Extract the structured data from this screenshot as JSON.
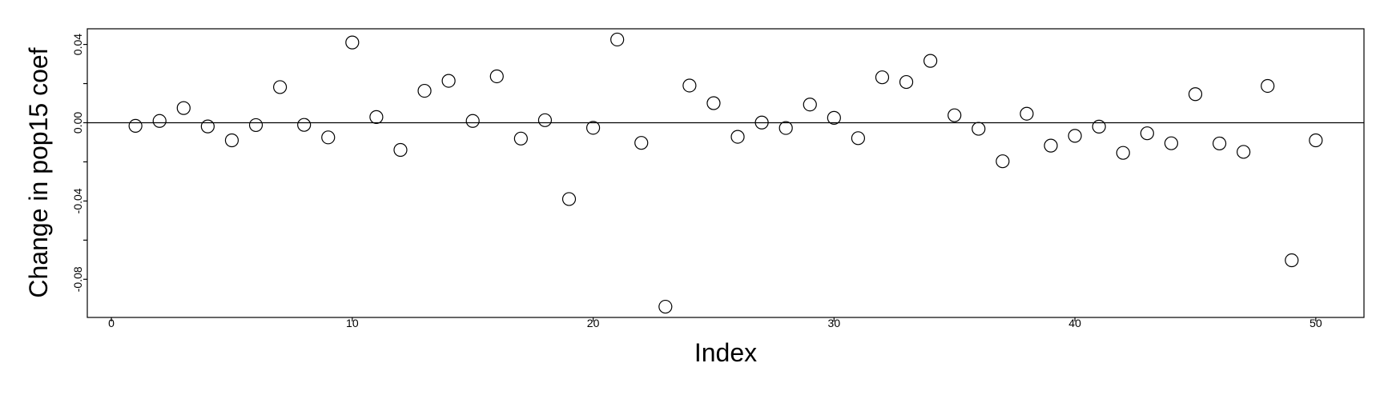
{
  "chart_data": {
    "type": "scatter",
    "title": "",
    "xlabel": "Index",
    "ylabel": "Change in pop15 coef",
    "xlim": [
      -1,
      52
    ],
    "ylim": [
      -0.0995,
      0.048
    ],
    "xticks": [
      0,
      10,
      20,
      30,
      40,
      50
    ],
    "xtick_labels": [
      "0",
      "10",
      "20",
      "30",
      "40",
      "50"
    ],
    "yticks": [
      -0.08,
      -0.04,
      0.0,
      0.04
    ],
    "ytick_labels": [
      "-0.08",
      "-0.04",
      "0.00",
      "0.04"
    ],
    "hline": 0.0,
    "grid": false,
    "marker": "open-circle",
    "x": [
      1,
      2,
      3,
      4,
      5,
      6,
      7,
      8,
      9,
      10,
      11,
      12,
      13,
      14,
      15,
      16,
      17,
      18,
      19,
      20,
      21,
      22,
      23,
      24,
      25,
      26,
      27,
      28,
      29,
      30,
      31,
      32,
      33,
      34,
      35,
      36,
      37,
      38,
      39,
      40,
      41,
      42,
      43,
      44,
      45,
      46,
      47,
      48,
      49,
      50
    ],
    "y": [
      -0.0016,
      0.0009,
      0.0075,
      -0.0019,
      -0.009,
      -0.0012,
      0.0182,
      -0.0011,
      -0.0075,
      0.041,
      0.0029,
      -0.0139,
      0.0163,
      0.0214,
      0.0009,
      0.0237,
      -0.0081,
      0.0013,
      -0.039,
      -0.0026,
      0.0425,
      -0.0103,
      -0.094,
      0.019,
      0.01,
      -0.0072,
      0.0001,
      -0.0027,
      0.0093,
      0.0025,
      -0.0079,
      0.0232,
      0.0208,
      0.0316,
      0.0038,
      -0.0031,
      -0.0197,
      0.0046,
      -0.0117,
      -0.0067,
      -0.002,
      -0.0154,
      -0.0054,
      -0.0105,
      0.0146,
      -0.0106,
      -0.0149,
      0.0188,
      -0.0703,
      -0.009
    ]
  }
}
